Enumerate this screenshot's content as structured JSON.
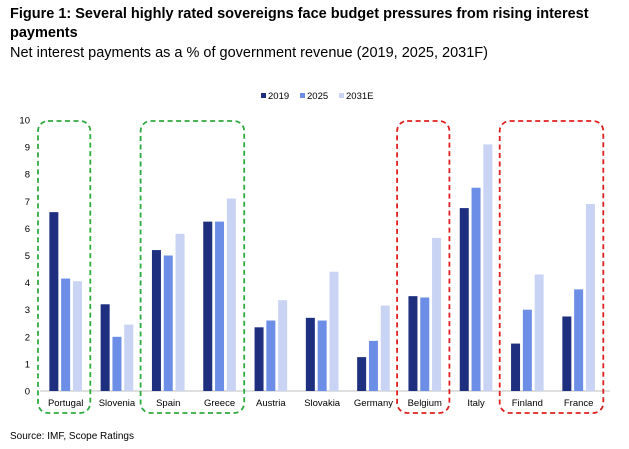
{
  "title": "Figure 1: Several highly rated sovereigns face budget pressures from rising interest payments",
  "subtitle": "Net interest payments as a % of government revenue (2019, 2025, 2031F)",
  "source": "Source: IMF, Scope Ratings",
  "chart_data": {
    "type": "bar",
    "categories": [
      "Portugal",
      "Slovenia",
      "Spain",
      "Greece",
      "Austria",
      "Slovakia",
      "Germany",
      "Belgium",
      "Italy",
      "Finland",
      "France"
    ],
    "series": [
      {
        "name": "2019",
        "color": "#1f2f7f",
        "values": [
          6.6,
          3.2,
          5.2,
          6.25,
          2.35,
          2.7,
          1.25,
          3.5,
          6.75,
          1.75,
          2.75
        ]
      },
      {
        "name": "2025",
        "color": "#6d8ee6",
        "values": [
          4.15,
          2.0,
          5.0,
          6.25,
          2.6,
          2.6,
          1.85,
          3.45,
          7.5,
          3.0,
          3.75
        ]
      },
      {
        "name": "2031E",
        "color": "#c9d3f3",
        "values": [
          4.05,
          2.45,
          5.8,
          7.1,
          3.35,
          4.4,
          3.15,
          5.65,
          9.1,
          4.3,
          6.9
        ]
      }
    ],
    "ylim": [
      0,
      10
    ],
    "yticks": [
      0,
      1,
      2,
      3,
      4,
      5,
      6,
      7,
      8,
      9,
      10
    ],
    "legend": "top-center",
    "grid": false,
    "highlight_groups": [
      {
        "color": "#2eaa3f",
        "style": "dashed",
        "categories": [
          "Portugal",
          "Slovenia"
        ],
        "span": [
          0,
          0
        ]
      },
      {
        "color": "#2eaa3f",
        "style": "dashed",
        "categories": [
          "Spain",
          "Greece"
        ],
        "span": [
          2,
          3
        ]
      },
      {
        "color": "#e02020",
        "style": "dashed",
        "categories": [
          "Belgium"
        ],
        "span": [
          7,
          7
        ]
      },
      {
        "color": "#e02020",
        "style": "dashed",
        "categories": [
          "Finland",
          "France"
        ],
        "span": [
          9,
          10
        ]
      }
    ]
  }
}
